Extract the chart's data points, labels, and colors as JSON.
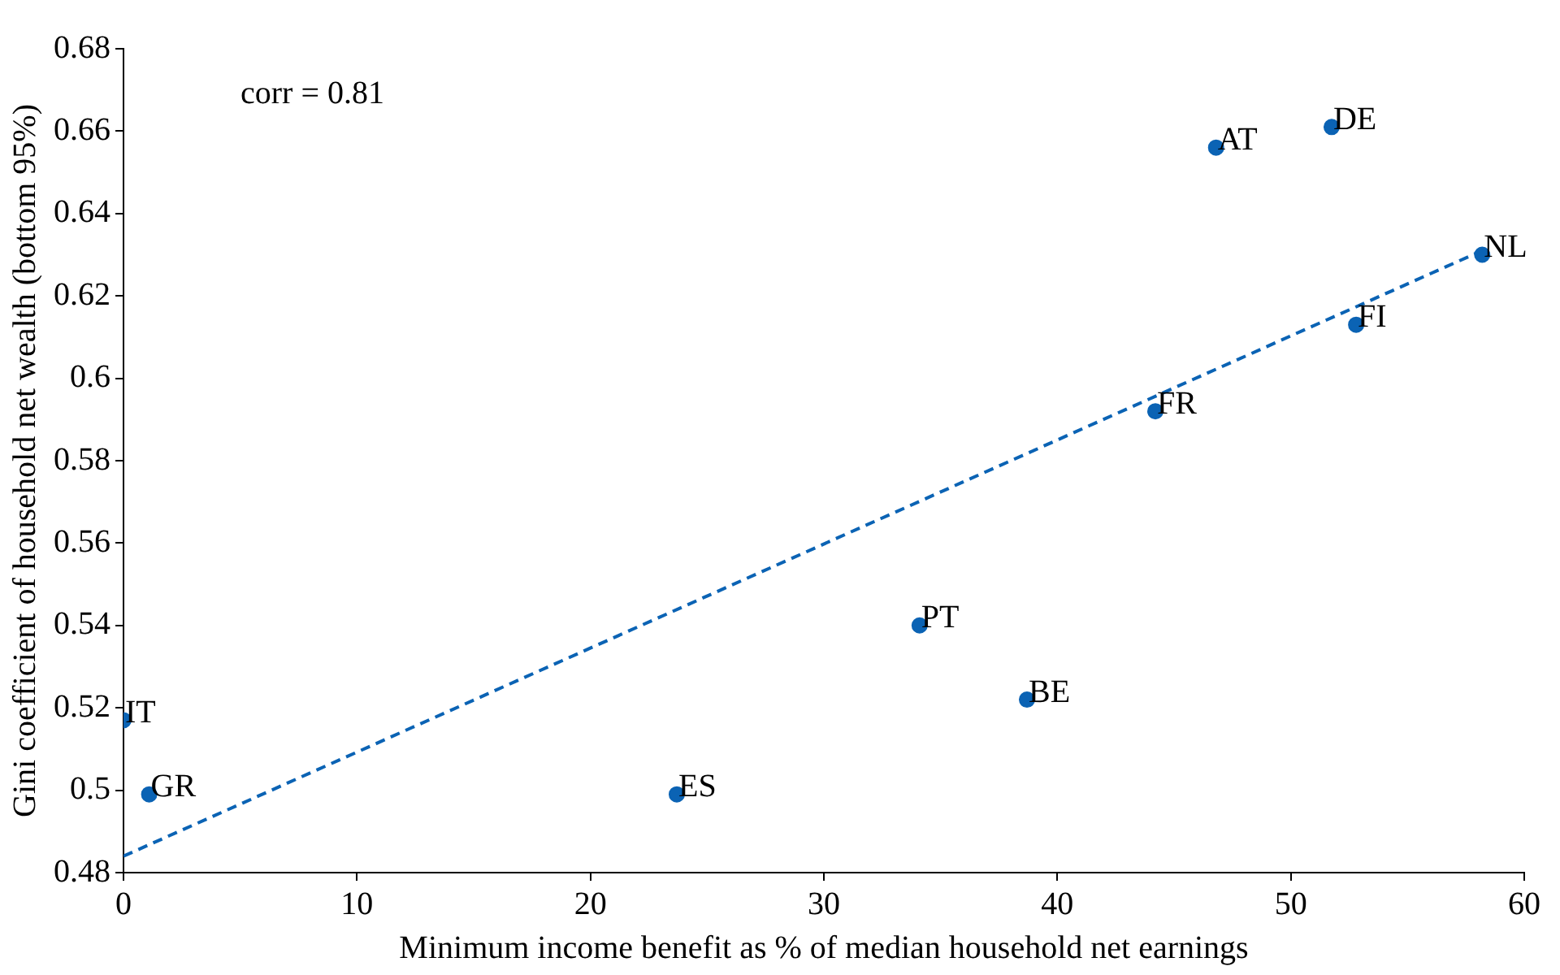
{
  "chart_data": {
    "type": "scatter",
    "xlabel": "Minimum income benefit as % of median household net earnings",
    "ylabel": "Gini coefficient of household net wealth (bottom 95%)",
    "series": [
      {
        "color": "#0b63b4",
        "marker": "circle",
        "x": [
          0,
          1.1,
          23.7,
          34.1,
          38.7,
          44.2,
          46.8,
          51.75,
          52.8,
          58.2
        ],
        "values": [
          0.517,
          0.499,
          0.499,
          0.54,
          0.522,
          0.592,
          0.656,
          0.661,
          0.613,
          0.63
        ]
      },
      {
        "type": "line",
        "color": "#0b63b4",
        "marker": "none",
        "line_style": "dashed",
        "x": [
          0,
          58.2
        ],
        "values": [
          0.484,
          0.631
        ]
      }
    ],
    "annotations": [
      "corr = 0.81",
      {
        "text": "IT",
        "x": 0,
        "y": 0.517
      },
      {
        "text": "GR",
        "x": 1.1,
        "y": 0.499
      },
      {
        "text": "ES",
        "x": 23.7,
        "y": 0.499
      },
      {
        "text": "PT",
        "x": 34.1,
        "y": 0.54
      },
      {
        "text": "BE",
        "x": 38.7,
        "y": 0.522
      },
      {
        "text": "FR",
        "x": 44.2,
        "y": 0.592
      },
      {
        "text": "AT",
        "x": 46.8,
        "y": 0.656
      },
      {
        "text": "DE",
        "x": 51.75,
        "y": 0.661
      },
      {
        "text": "FI",
        "x": 52.8,
        "y": 0.613
      },
      {
        "text": "NL",
        "x": 58.2,
        "y": 0.63
      }
    ],
    "xlim": [
      0,
      60
    ],
    "xticks": [
      0,
      10,
      20,
      30,
      40,
      50,
      60
    ],
    "ylim": [
      0.48,
      0.68
    ],
    "yticks": [
      0.48,
      0.5,
      0.52,
      0.54,
      0.56,
      0.58,
      0.6,
      0.62,
      0.64,
      0.66,
      0.68
    ],
    "legend": false
  }
}
